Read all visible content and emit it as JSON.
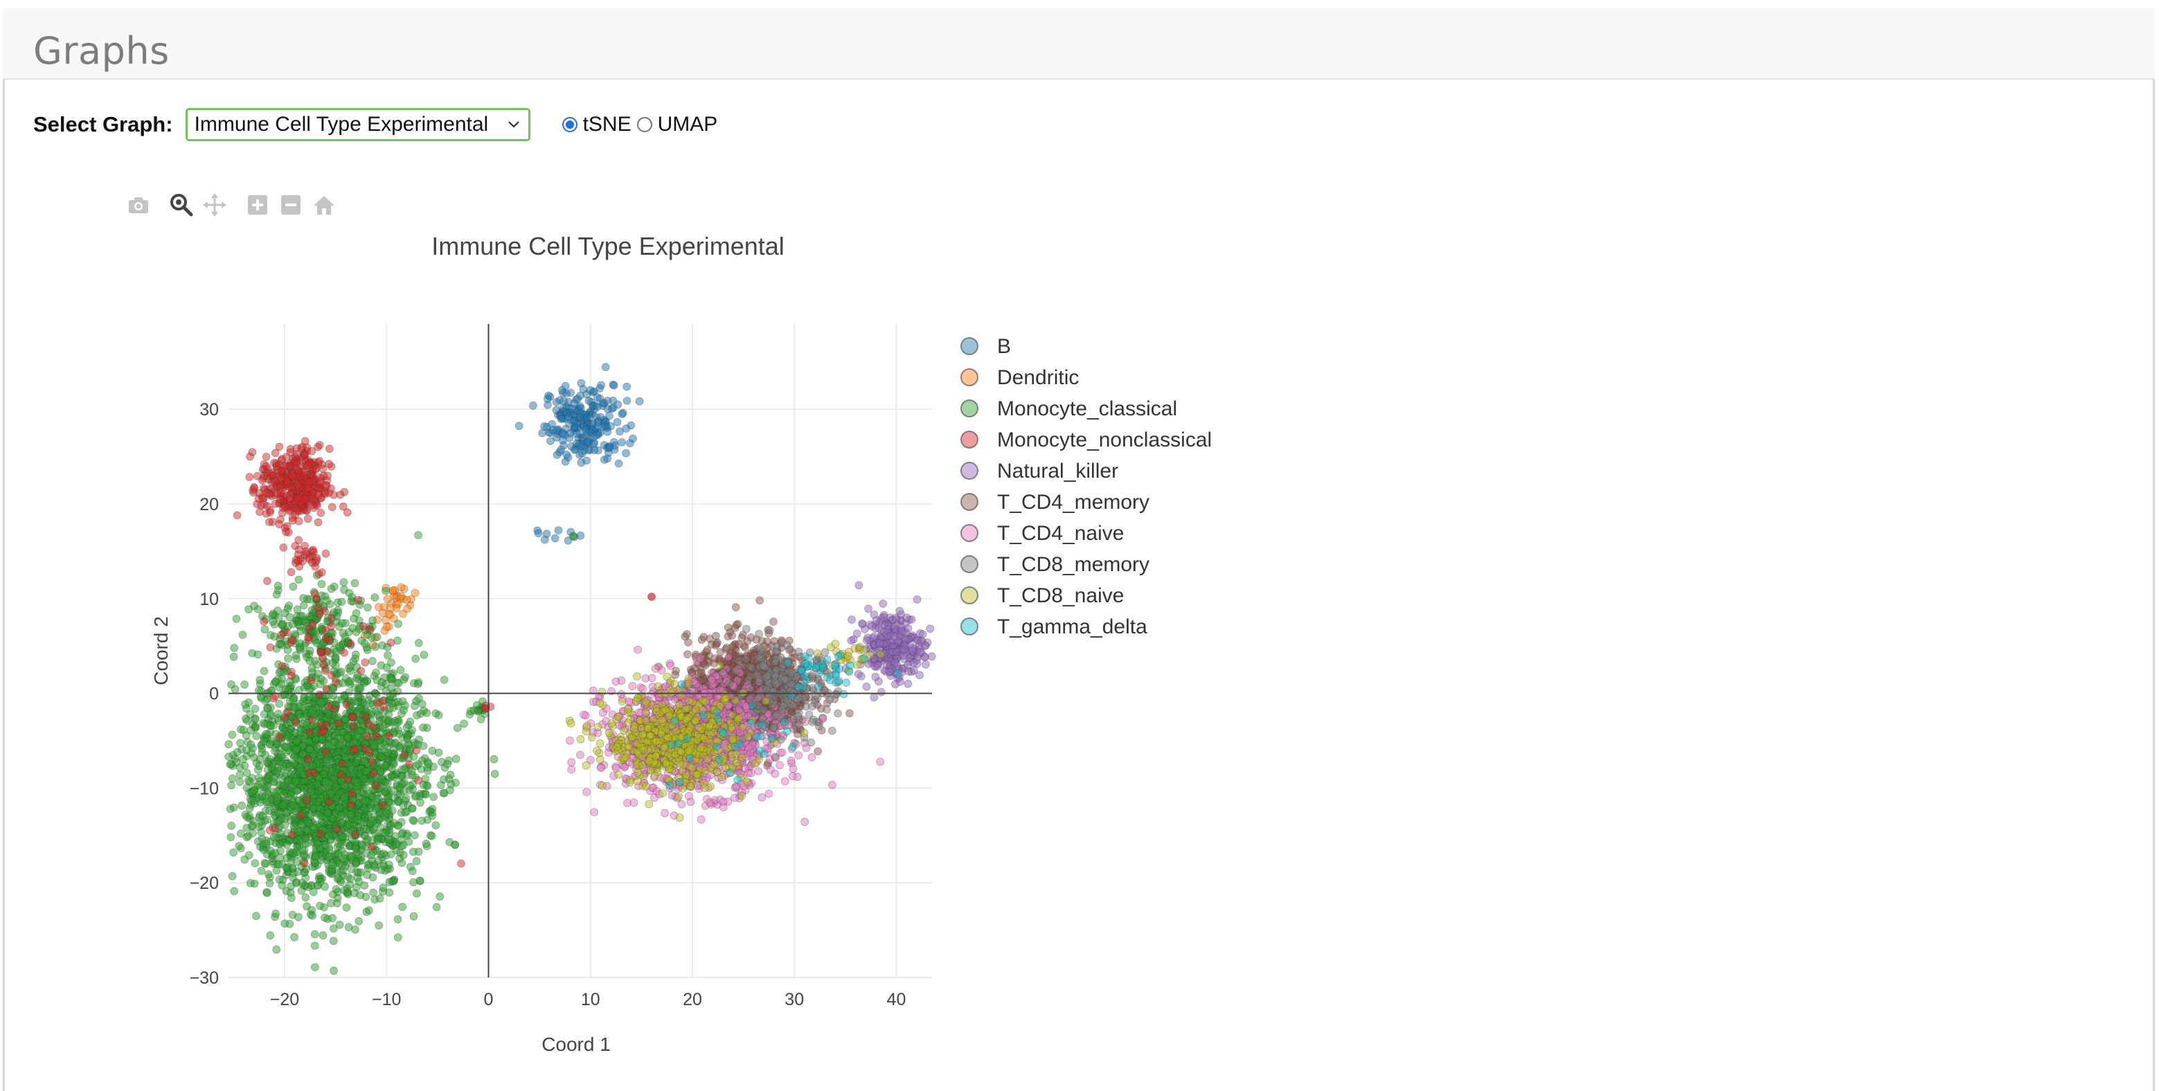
{
  "page": {
    "title": "Graphs"
  },
  "controls": {
    "select_label": "Select Graph:",
    "selected_graph": "Immune Cell Type Experimental",
    "projection_options": [
      {
        "label": "tSNE",
        "checked": true
      },
      {
        "label": "UMAP",
        "checked": false
      }
    ]
  },
  "modebar": {
    "icons": [
      "camera-icon",
      "zoom-icon",
      "pan-icon",
      "zoom-in-icon",
      "zoom-out-icon",
      "home-icon"
    ],
    "active": "zoom-icon"
  },
  "chart_data": {
    "type": "scatter",
    "title": "Immune Cell Type Experimental",
    "xlabel": "Coord 1",
    "ylabel": "Coord 2",
    "xlim": [
      -25.5,
      43.5
    ],
    "ylim": [
      -30,
      39
    ],
    "xticks": [
      -20,
      -10,
      0,
      10,
      20,
      30,
      40
    ],
    "yticks": [
      -30,
      -20,
      -10,
      0,
      10,
      20,
      30
    ],
    "grid": true,
    "zeroline": true,
    "legend_position": "right",
    "series": [
      {
        "name": "B",
        "color": "#1f77b4",
        "clusters": [
          {
            "cx": 9.5,
            "cy": 28.5,
            "sx": 2.0,
            "sy": 2.0,
            "n": 230
          },
          {
            "cx": 5.5,
            "cy": 16.8,
            "sx": 1.5,
            "sy": 0.35,
            "n": 10
          }
        ]
      },
      {
        "name": "Dendritic",
        "color": "#ff7f0e",
        "clusters": [
          {
            "cx": -9.0,
            "cy": 9.5,
            "sx": 0.9,
            "sy": 1.1,
            "n": 30
          },
          {
            "cx": -10.5,
            "cy": 7.0,
            "sx": 0.8,
            "sy": 0.8,
            "n": 8
          }
        ]
      },
      {
        "name": "Monocyte_classical",
        "color": "#2ca02c",
        "clusters": [
          {
            "cx": -15.5,
            "cy": -9.0,
            "sx": 4.5,
            "sy": 6.0,
            "n": 2600
          },
          {
            "cx": -16.5,
            "cy": 7.5,
            "sx": 2.8,
            "sy": 2.0,
            "n": 180
          },
          {
            "cx": -1.0,
            "cy": -1.8,
            "sx": 0.5,
            "sy": 0.4,
            "n": 14
          }
        ]
      },
      {
        "name": "Monocyte_nonclassical",
        "color": "#d62728",
        "clusters": [
          {
            "cx": -19.0,
            "cy": 21.8,
            "sx": 1.7,
            "sy": 2.0,
            "n": 380
          },
          {
            "cx": -18.0,
            "cy": 14.5,
            "sx": 1.2,
            "sy": 1.0,
            "n": 30
          },
          {
            "cx": -16.0,
            "cy": 6.0,
            "sx": 3.0,
            "sy": 3.0,
            "n": 35
          },
          {
            "cx": -14.0,
            "cy": -5.0,
            "sx": 4.0,
            "sy": 6.0,
            "n": 70
          },
          {
            "cx": 0.0,
            "cy": -1.5,
            "sx": 0.3,
            "sy": 0.3,
            "n": 4
          }
        ]
      },
      {
        "name": "Natural_killer",
        "color": "#9467bd",
        "clusters": [
          {
            "cx": 39.5,
            "cy": 5.0,
            "sx": 1.6,
            "sy": 1.8,
            "n": 260
          }
        ]
      },
      {
        "name": "T_CD4_memory",
        "color": "#8c564b",
        "clusters": [
          {
            "cx": 25.5,
            "cy": 0.5,
            "sx": 3.0,
            "sy": 2.6,
            "n": 900
          }
        ]
      },
      {
        "name": "T_CD4_naive",
        "color": "#e377c2",
        "clusters": [
          {
            "cx": 20.0,
            "cy": -4.5,
            "sx": 4.3,
            "sy": 3.0,
            "n": 1100
          }
        ]
      },
      {
        "name": "T_CD8_memory",
        "color": "#7f7f7f",
        "clusters": [
          {
            "cx": 29.0,
            "cy": 0.5,
            "sx": 2.5,
            "sy": 2.2,
            "n": 220
          }
        ]
      },
      {
        "name": "T_CD8_naive",
        "color": "#bcbd22",
        "clusters": [
          {
            "cx": 18.5,
            "cy": -5.0,
            "sx": 3.5,
            "sy": 2.4,
            "n": 520
          },
          {
            "cx": 35.5,
            "cy": 4.0,
            "sx": 1.4,
            "sy": 0.7,
            "n": 25
          }
        ]
      },
      {
        "name": "T_gamma_delta",
        "color": "#17becf",
        "clusters": [
          {
            "cx": 33.0,
            "cy": 2.0,
            "sx": 2.0,
            "sy": 1.2,
            "n": 40
          },
          {
            "cx": 22.0,
            "cy": -5.0,
            "sx": 4.0,
            "sy": 2.5,
            "n": 30
          }
        ]
      }
    ],
    "extra_points": [
      {
        "x": 16.0,
        "y": 10.2,
        "series": "Monocyte_nonclassical"
      },
      {
        "x": 8.3,
        "y": 16.6,
        "series": "Monocyte_classical"
      }
    ]
  }
}
